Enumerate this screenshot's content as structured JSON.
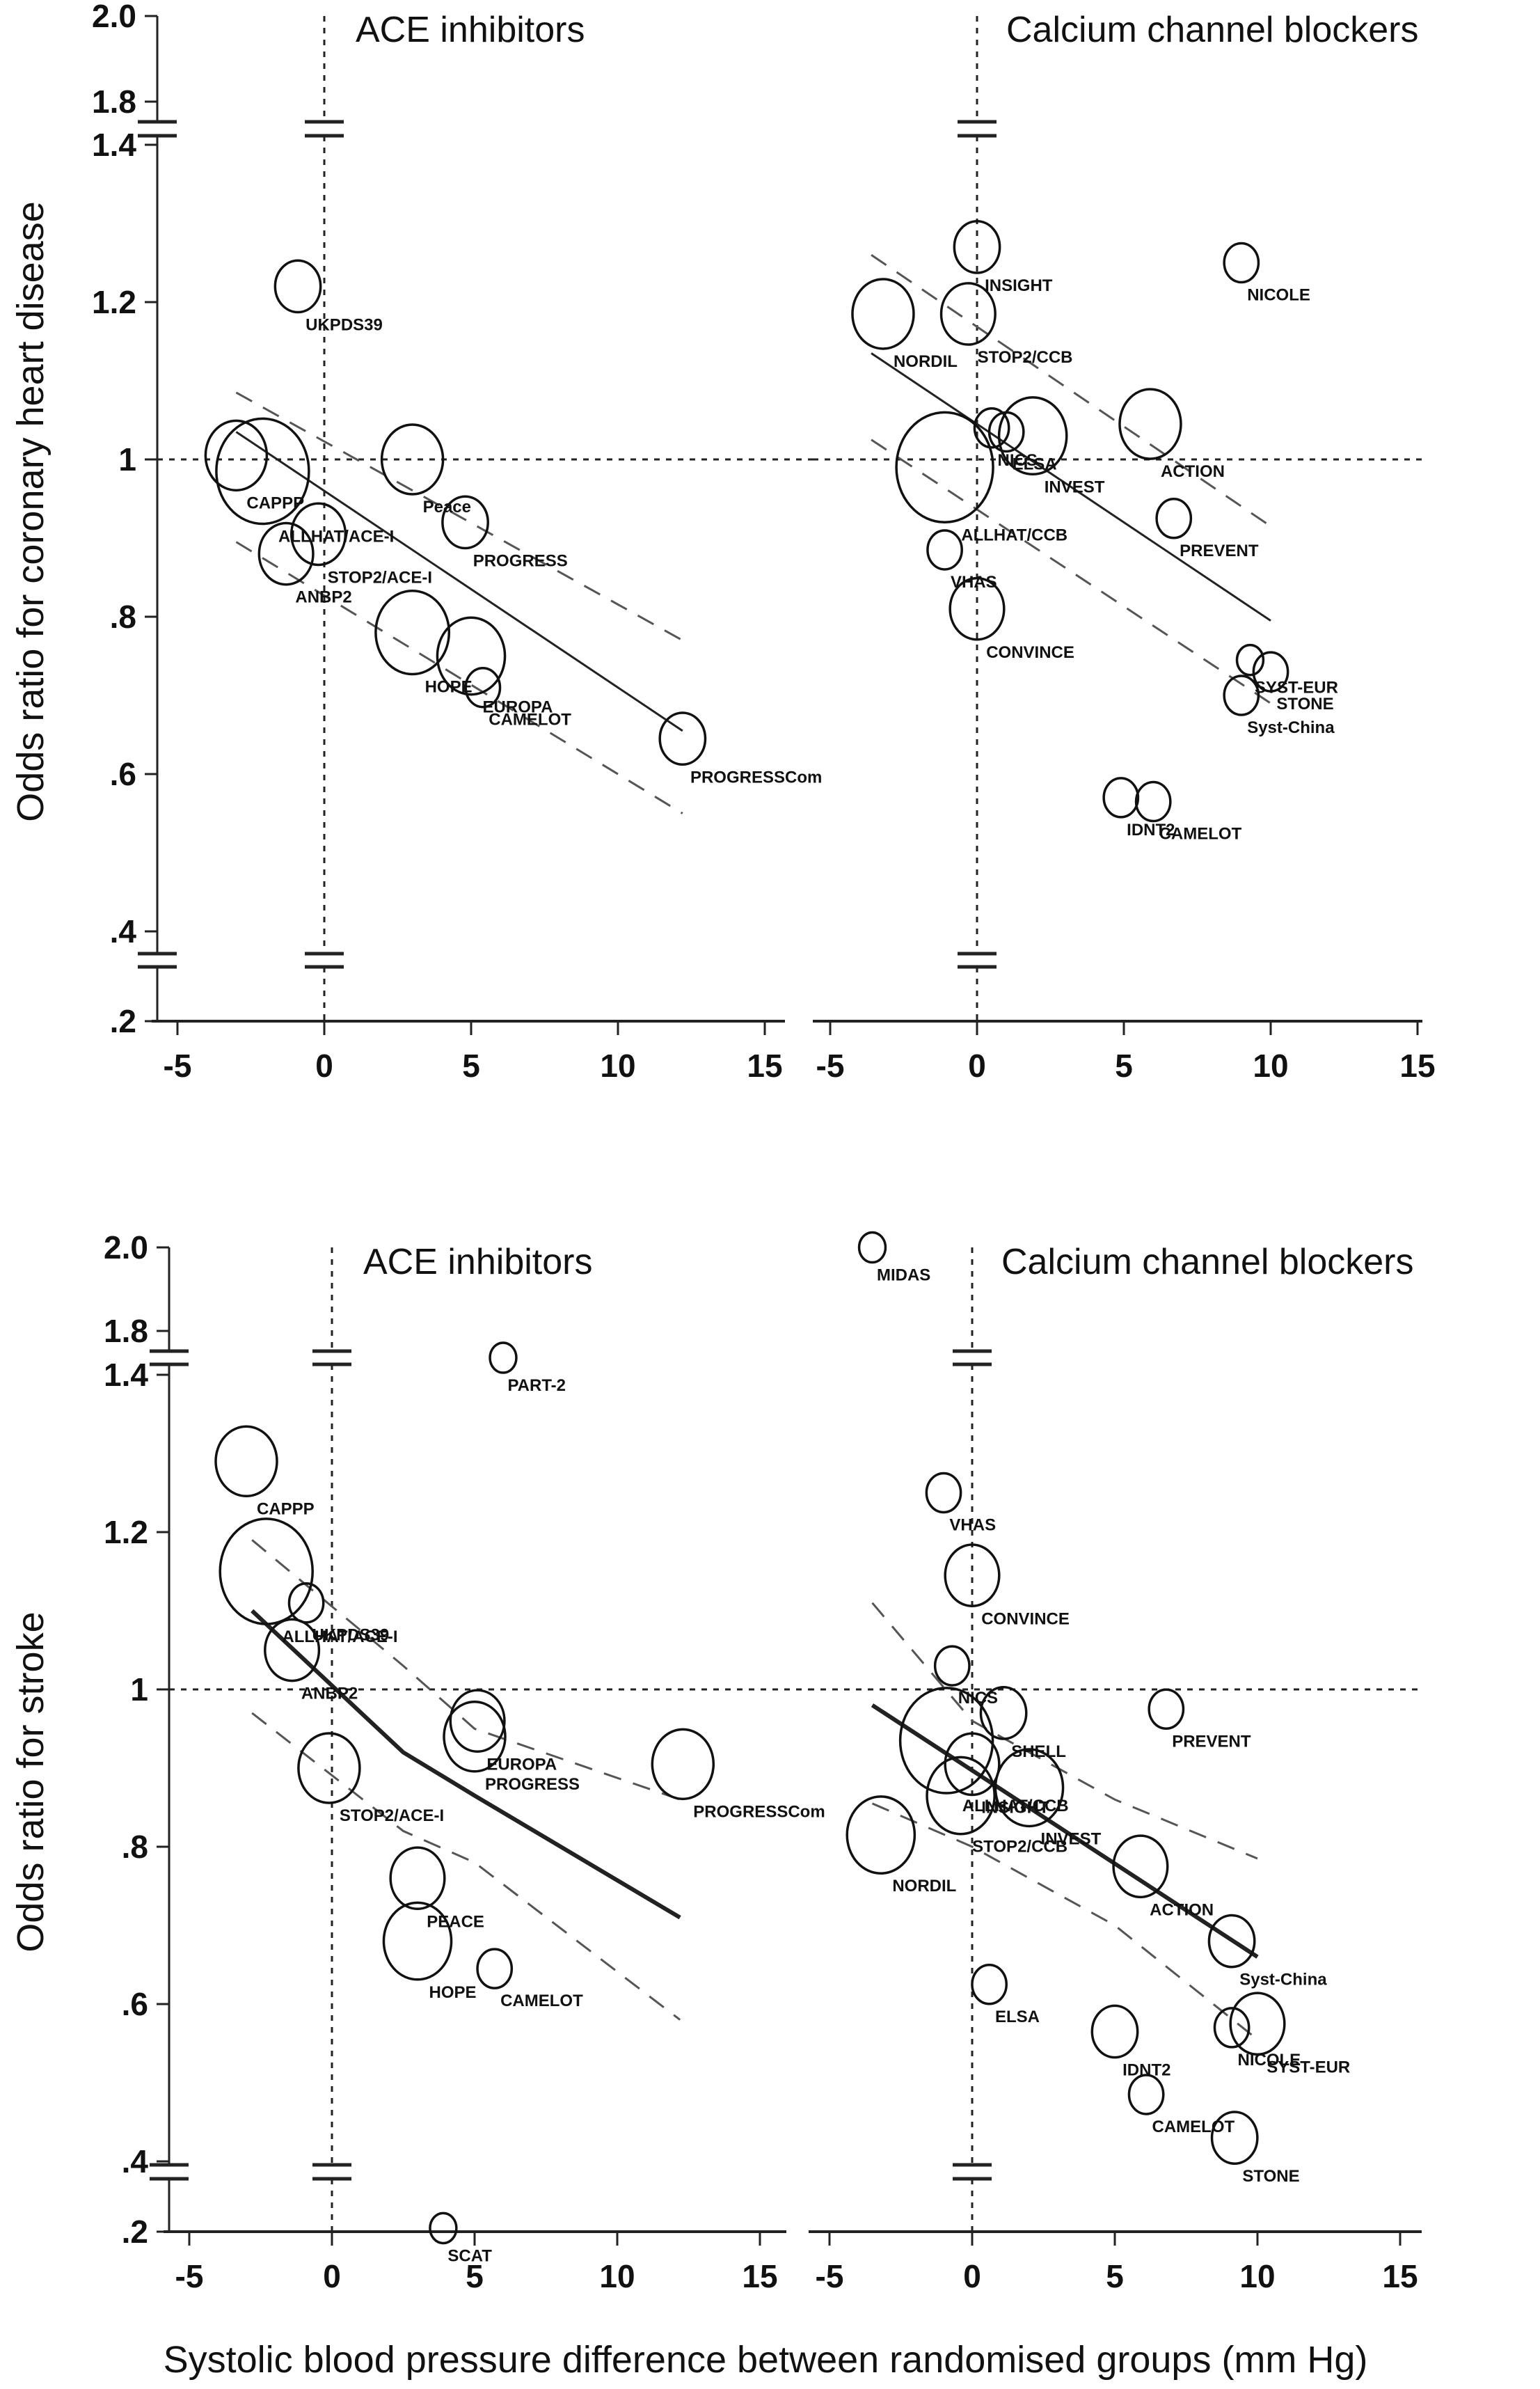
{
  "figure": {
    "xlabel": "Systolic blood pressure difference between randomised groups (mm Hg)"
  },
  "chart_data": [
    {
      "type": "scatter",
      "outcome": "Coronary heart disease",
      "ylabel": "Odds ratio for coronary heart disease",
      "xlabel": "Systolic blood pressure difference between randomised groups (mm Hg)",
      "xlim": [
        -6,
        16
      ],
      "x_ticks": [
        -5,
        0,
        5,
        10,
        15
      ],
      "y_ticks": [
        ".2",
        ".4",
        ".6",
        ".8",
        "1",
        "1.2",
        "1.4",
        "1.8",
        "2.0"
      ],
      "y_axis_breaks": [
        [
          0.2,
          0.4
        ],
        [
          1.4,
          1.8
        ]
      ],
      "reference_lines": {
        "x": 0,
        "y": 1
      },
      "panels": [
        {
          "title": "ACE inhibitors",
          "points": [
            {
              "label": "UKPDS39",
              "x": -0.9,
              "y": 1.22,
              "size": 2
            },
            {
              "label": "CAPPP",
              "x": -3.0,
              "y": 1.005,
              "size": 4
            },
            {
              "label": "ALLHAT/ACE-I",
              "x": -2.1,
              "y": 0.985,
              "size": 10
            },
            {
              "label": "Peace",
              "x": 3.0,
              "y": 1.0,
              "size": 4
            },
            {
              "label": "PROGRESS",
              "x": 4.8,
              "y": 0.92,
              "size": 2
            },
            {
              "label": "STOP2/ACE-I",
              "x": -0.2,
              "y": 0.905,
              "size": 3
            },
            {
              "label": "ANBP2",
              "x": -1.3,
              "y": 0.88,
              "size": 3
            },
            {
              "label": "HOPE",
              "x": 3.0,
              "y": 0.78,
              "size": 6
            },
            {
              "label": "EUROPA",
              "x": 5.0,
              "y": 0.75,
              "size": 5
            },
            {
              "label": "CAMELOT",
              "x": 5.4,
              "y": 0.71,
              "size": 1
            },
            {
              "label": "PROGRESSCom",
              "x": 12.2,
              "y": 0.645,
              "size": 2
            }
          ],
          "regression": {
            "x": [
              -3,
              12.2
            ],
            "y": [
              1.035,
              0.655
            ]
          },
          "ci_upper": {
            "x": [
              -3,
              12.2
            ],
            "y": [
              1.085,
              0.77
            ]
          },
          "ci_lower": {
            "x": [
              -3,
              12.2
            ],
            "y": [
              0.895,
              0.55
            ]
          }
        },
        {
          "title": "Calcium channel blockers",
          "points": [
            {
              "label": "INSIGHT",
              "x": 0.0,
              "y": 1.27,
              "size": 2
            },
            {
              "label": "NICOLE",
              "x": 9.0,
              "y": 1.25,
              "size": 1
            },
            {
              "label": "NORDIL",
              "x": -3.2,
              "y": 1.185,
              "size": 4
            },
            {
              "label": "STOP2/CCB",
              "x": -0.3,
              "y": 1.185,
              "size": 3
            },
            {
              "label": "ELSA",
              "x": 1.0,
              "y": 1.035,
              "size": 1
            },
            {
              "label": "NICS",
              "x": 0.5,
              "y": 1.04,
              "size": 1
            },
            {
              "label": "INVEST",
              "x": 1.9,
              "y": 1.03,
              "size": 5
            },
            {
              "label": "ACTION",
              "x": 5.9,
              "y": 1.045,
              "size": 4
            },
            {
              "label": "ALLHAT/CCB",
              "x": -1.1,
              "y": 0.99,
              "size": 11
            },
            {
              "label": "PREVENT",
              "x": 6.7,
              "y": 0.925,
              "size": 1
            },
            {
              "label": "VHAS",
              "x": -1.1,
              "y": 0.885,
              "size": 1
            },
            {
              "label": "CONVINCE",
              "x": 0.0,
              "y": 0.81,
              "size": 3
            },
            {
              "label": "STONE",
              "x": 10.0,
              "y": 0.73,
              "size": 1
            },
            {
              "label": "SYST-EUR",
              "x": 9.3,
              "y": 0.745,
              "size": 0.5
            },
            {
              "label": "Syst-China",
              "x": 9.0,
              "y": 0.7,
              "size": 1
            },
            {
              "label": "IDNT2",
              "x": 4.9,
              "y": 0.57,
              "size": 1
            },
            {
              "label": "CAMELOT",
              "x": 6.0,
              "y": 0.565,
              "size": 1
            }
          ],
          "regression": {
            "x": [
              -3.6,
              10
            ],
            "y": [
              1.135,
              0.795
            ]
          },
          "ci_upper": {
            "x": [
              -3.6,
              10
            ],
            "y": [
              1.26,
              0.915
            ]
          },
          "ci_lower": {
            "x": [
              -3.6,
              10
            ],
            "y": [
              1.025,
              0.69
            ]
          }
        }
      ]
    },
    {
      "type": "scatter",
      "outcome": "Stroke",
      "ylabel": "Odds ratio for stroke",
      "xlabel": "Systolic blood pressure difference between randomised groups (mm Hg)",
      "xlim": [
        -6,
        16
      ],
      "x_ticks": [
        -5,
        0,
        5,
        10,
        15
      ],
      "y_ticks": [
        ".2",
        ".4",
        ".6",
        ".8",
        "1",
        "1.2",
        "1.4",
        "1.8",
        "2.0"
      ],
      "y_axis_breaks": [
        [
          0.2,
          0.4
        ],
        [
          1.4,
          1.8
        ]
      ],
      "reference_lines": {
        "x": 0,
        "y": 1
      },
      "panels": [
        {
          "title": "ACE inhibitors",
          "points": [
            {
              "label": "PART-2",
              "x": 6.0,
              "y": 1.75,
              "size": 0.5
            },
            {
              "label": "CAPPP",
              "x": -3.0,
              "y": 1.29,
              "size": 4
            },
            {
              "label": "ALLHAT/ACE-I",
              "x": -2.3,
              "y": 1.15,
              "size": 10
            },
            {
              "label": "UKPDS39",
              "x": -0.9,
              "y": 1.11,
              "size": 1
            },
            {
              "label": "ANBP2",
              "x": -1.4,
              "y": 1.05,
              "size": 3
            },
            {
              "label": "EUROPA",
              "x": 5.1,
              "y": 0.96,
              "size": 3
            },
            {
              "label": "PROGRESS",
              "x": 5.0,
              "y": 0.94,
              "size": 4
            },
            {
              "label": "PROGRESSCom",
              "x": 12.3,
              "y": 0.905,
              "size": 4
            },
            {
              "label": "STOP2/ACE-I",
              "x": -0.1,
              "y": 0.9,
              "size": 4
            },
            {
              "label": "PEACE",
              "x": 3.0,
              "y": 0.76,
              "size": 3
            },
            {
              "label": "HOPE",
              "x": 3.0,
              "y": 0.68,
              "size": 5
            },
            {
              "label": "CAMELOT",
              "x": 5.7,
              "y": 0.645,
              "size": 1
            },
            {
              "label": "SCAT",
              "x": 3.9,
              "y": 0.21,
              "size": 0.5
            }
          ],
          "regression": {
            "x": [
              -2.8,
              2.5,
              5.0,
              12.2
            ],
            "y": [
              1.1,
              0.92,
              0.865,
              0.71
            ]
          },
          "ci_upper": {
            "x": [
              -2.8,
              2.5,
              5.0,
              12.2
            ],
            "y": [
              1.19,
              1.03,
              0.95,
              0.86
            ]
          },
          "ci_lower": {
            "x": [
              -2.8,
              2.5,
              5.0,
              12.2
            ],
            "y": [
              0.97,
              0.82,
              0.78,
              0.58
            ]
          }
        },
        {
          "title": "Calcium channel blockers",
          "points": [
            {
              "label": "MIDAS",
              "x": -3.5,
              "y": 2.0,
              "size": 0.5
            },
            {
              "label": "VHAS",
              "x": -1.0,
              "y": 1.25,
              "size": 1
            },
            {
              "label": "CONVINCE",
              "x": 0.0,
              "y": 1.145,
              "size": 3
            },
            {
              "label": "NICS",
              "x": -0.7,
              "y": 1.03,
              "size": 1
            },
            {
              "label": "ALLHAT/CCB",
              "x": -0.9,
              "y": 0.935,
              "size": 10
            },
            {
              "label": "SHELL",
              "x": 1.1,
              "y": 0.97,
              "size": 2
            },
            {
              "label": "PREVENT",
              "x": 6.8,
              "y": 0.975,
              "size": 1
            },
            {
              "label": "INSIGHT",
              "x": 0.0,
              "y": 0.905,
              "size": 3
            },
            {
              "label": "INVEST",
              "x": 2.0,
              "y": 0.875,
              "size": 5
            },
            {
              "label": "STOP2/CCB",
              "x": -0.4,
              "y": 0.865,
              "size": 5
            },
            {
              "label": "NORDIL",
              "x": -3.2,
              "y": 0.815,
              "size": 5
            },
            {
              "label": "ACTION",
              "x": 5.9,
              "y": 0.775,
              "size": 3
            },
            {
              "label": "Syst-China",
              "x": 9.1,
              "y": 0.68,
              "size": 2
            },
            {
              "label": "ELSA",
              "x": 0.6,
              "y": 0.625,
              "size": 1
            },
            {
              "label": "SYST-EUR",
              "x": 10.0,
              "y": 0.575,
              "size": 3
            },
            {
              "label": "IDNT2",
              "x": 5.0,
              "y": 0.565,
              "size": 2
            },
            {
              "label": "NICOLE",
              "x": 9.1,
              "y": 0.57,
              "size": 1
            },
            {
              "label": "CAMELOT",
              "x": 6.1,
              "y": 0.485,
              "size": 1
            },
            {
              "label": "STONE",
              "x": 9.2,
              "y": 0.43,
              "size": 2
            }
          ],
          "regression": {
            "x": [
              -3.5,
              10
            ],
            "y": [
              0.98,
              0.66
            ]
          },
          "ci_upper": {
            "x": [
              -3.5,
              0,
              5,
              10
            ],
            "y": [
              1.11,
              0.96,
              0.86,
              0.785
            ]
          },
          "ci_lower": {
            "x": [
              -3.5,
              0,
              5,
              10
            ],
            "y": [
              0.855,
              0.8,
              0.7,
              0.555
            ]
          }
        }
      ]
    }
  ]
}
